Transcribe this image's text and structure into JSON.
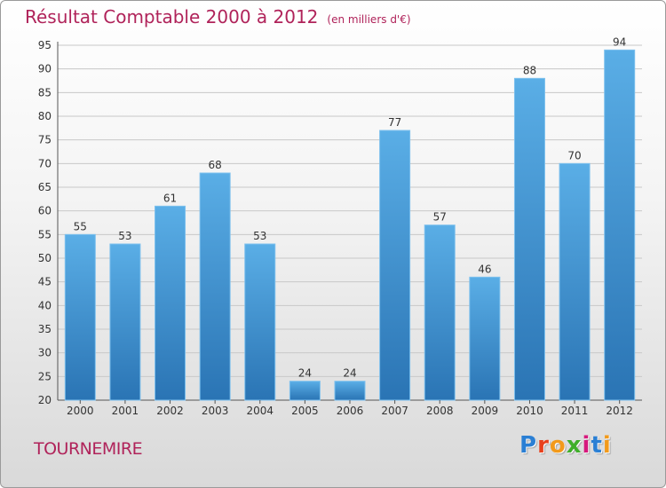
{
  "title": "Résultat Comptable 2000 à 2012",
  "subtitle": "(en milliers d'€)",
  "commune": "TOURNEMIRE",
  "logo": {
    "letters": [
      "P",
      "r",
      "o",
      "x",
      "i",
      "t",
      "i"
    ],
    "colors": [
      "#2a7fd4",
      "#e8401c",
      "#f29a1b",
      "#3fae2a",
      "#d6197d",
      "#2a7fd4",
      "#f29a1b"
    ]
  },
  "colors": {
    "title": "#b0235a",
    "bar_top": "#5aaee6",
    "bar_bottom": "#2a74b4"
  },
  "chart_data": {
    "type": "bar",
    "categories": [
      "2000",
      "2001",
      "2002",
      "2003",
      "2004",
      "2005",
      "2006",
      "2007",
      "2008",
      "2009",
      "2010",
      "2011",
      "2012"
    ],
    "values": [
      55,
      53,
      61,
      68,
      53,
      24,
      24,
      77,
      57,
      46,
      88,
      70,
      94
    ],
    "ylim": [
      20,
      95
    ],
    "yticks": [
      20,
      25,
      30,
      35,
      40,
      45,
      50,
      55,
      60,
      65,
      70,
      75,
      80,
      85,
      90,
      95
    ],
    "grid": true,
    "title": "Résultat Comptable 2000 à 2012",
    "xlabel": "",
    "ylabel": ""
  }
}
